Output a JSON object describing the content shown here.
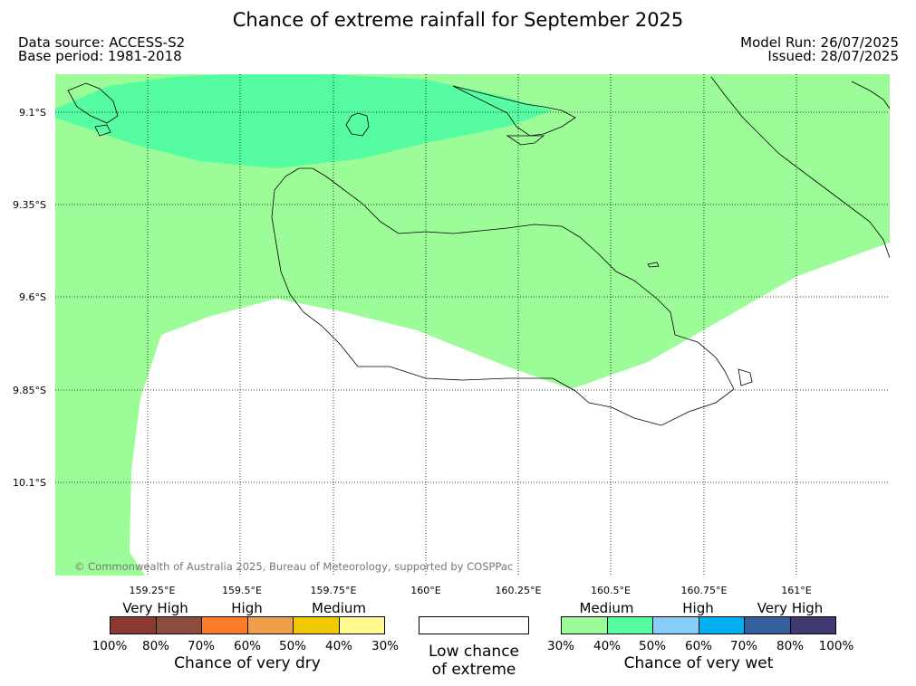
{
  "title": "Chance of extreme rainfall for September 2025",
  "data_source": "Data source: ACCESS-S2",
  "base_period": "Base period: 1981-2018",
  "model_run": "Model Run: 26/07/2025",
  "issued": "Issued: 28/07/2025",
  "map": {
    "lat_labels": [
      "9.1°S",
      "9.35°S",
      "9.6°S",
      "9.85°S",
      "10.1°S"
    ],
    "lon_labels": [
      "159.25°E",
      "159.5°E",
      "159.75°E",
      "160°E",
      "160.25°E",
      "160.5°E",
      "160.75°E",
      "161°E"
    ],
    "copyright": "© Commonwealth of Australia 2025, Bureau of Meteorology, supported by COSPPac",
    "shading": [
      {
        "category": "Chance of very wet",
        "range": "30%–40%",
        "color": "#9bfc98"
      },
      {
        "category": "Chance of very wet",
        "range": "40%–50%",
        "color": "#56fca2"
      }
    ]
  },
  "legend": {
    "dry": {
      "captions": [
        "Very High",
        "High",
        "Medium"
      ],
      "ticks": [
        "100%",
        "80%",
        "70%",
        "60%",
        "50%",
        "40%",
        "30%"
      ],
      "colors": [
        "#8b3a32",
        "#8b4e3e",
        "#fb7c28",
        "#ef9f4a",
        "#f0c900",
        "#fff990"
      ],
      "title": "Chance of very dry"
    },
    "low": {
      "line1": "Low chance",
      "line2": "of extreme",
      "color": "#ffffff"
    },
    "wet": {
      "captions": [
        "Medium",
        "High",
        "Very High"
      ],
      "ticks": [
        "30%",
        "40%",
        "50%",
        "60%",
        "70%",
        "80%",
        "100%"
      ],
      "colors": [
        "#9bfc98",
        "#56fca2",
        "#86cdfa",
        "#00b0f0",
        "#33609c",
        "#3f3a74"
      ],
      "title": "Chance of very wet"
    }
  }
}
